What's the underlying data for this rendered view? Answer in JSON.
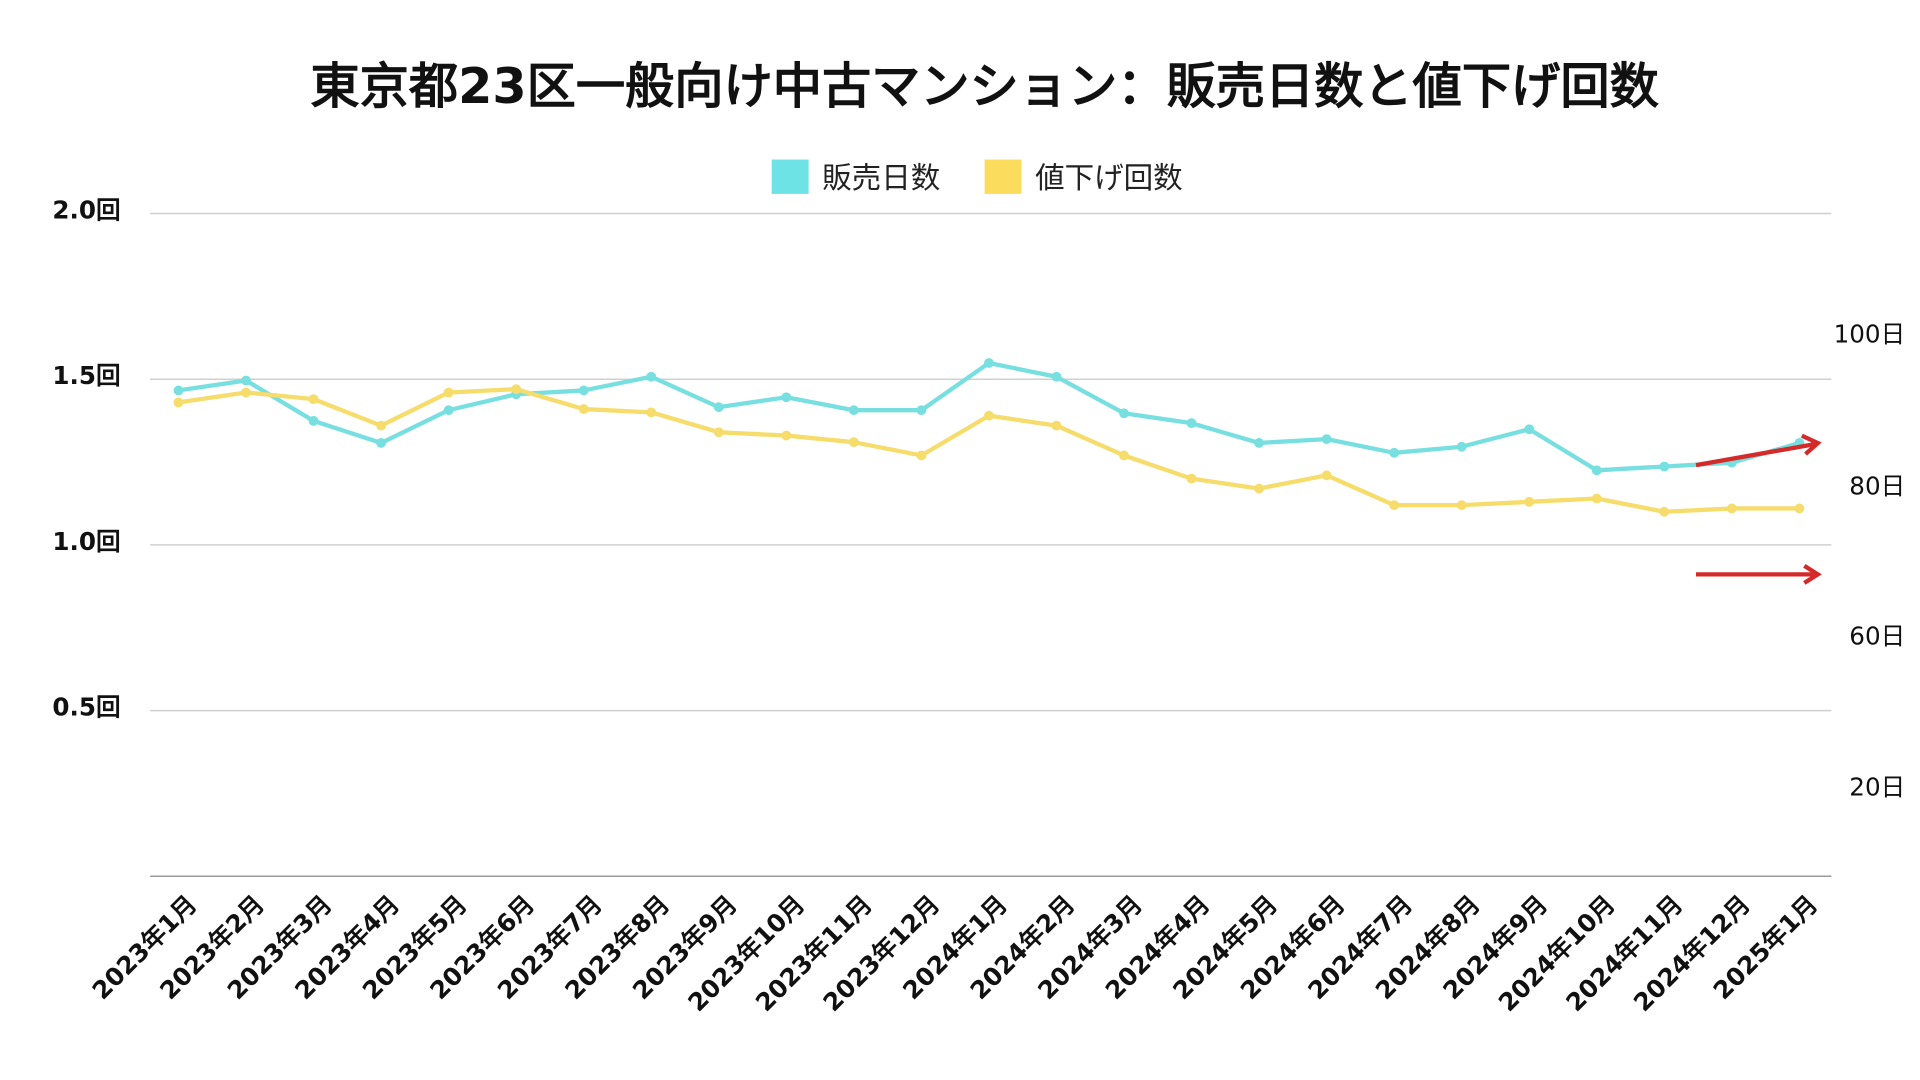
{
  "chart_data": {
    "type": "line",
    "title": "東京都23区一般向け中古マンション：販売日数と値下げ回数",
    "legend_position": "top-center",
    "categories": [
      "2023年1月",
      "2023年2月",
      "2023年3月",
      "2023年4月",
      "2023年5月",
      "2023年6月",
      "2023年7月",
      "2023年8月",
      "2023年9月",
      "2023年10月",
      "2023年11月",
      "2023年12月",
      "2024年1月",
      "2024年2月",
      "2024年3月",
      "2024年4月",
      "2024年5月",
      "2024年6月",
      "2024年7月",
      "2024年8月",
      "2024年9月",
      "2024年10月",
      "2024年11月",
      "2024年12月",
      "2025年1月"
    ],
    "series": [
      {
        "name": "販売日数",
        "axis": "right",
        "color": "#6ee3e6",
        "values": [
          92.4,
          93.7,
          88.4,
          85.5,
          89.8,
          91.9,
          92.4,
          94.2,
          90.2,
          91.5,
          89.8,
          89.8,
          96.0,
          94.2,
          89.4,
          88.1,
          85.5,
          86.0,
          84.2,
          85.0,
          87.3,
          81.9,
          82.4,
          82.9,
          85.5
        ]
      },
      {
        "name": "値下げ回数",
        "axis": "left",
        "color": "#fcdc5c",
        "values": [
          1.43,
          1.46,
          1.44,
          1.36,
          1.46,
          1.47,
          1.41,
          1.4,
          1.34,
          1.33,
          1.31,
          1.27,
          1.39,
          1.36,
          1.27,
          1.2,
          1.17,
          1.21,
          1.12,
          1.12,
          1.13,
          1.14,
          1.1,
          1.11,
          1.11
        ]
      }
    ],
    "left_axis": {
      "ylim": [
        0,
        2.0
      ],
      "ticks": [
        2.0,
        1.5,
        1.0,
        0.5
      ],
      "tick_labels": [
        "2.0回",
        "1.5回",
        "1.0回",
        "0.5回"
      ]
    },
    "right_axis": {
      "tick_labels": [
        "100日",
        "80日",
        "60日",
        "20日"
      ]
    },
    "grid": true,
    "annotations": [
      {
        "type": "arrow",
        "color": "#d42a2a",
        "meaning": "upward trend at end of 販売日数"
      },
      {
        "type": "arrow",
        "color": "#d42a2a",
        "meaning": "flat trend at end of 値下げ回数"
      }
    ]
  }
}
